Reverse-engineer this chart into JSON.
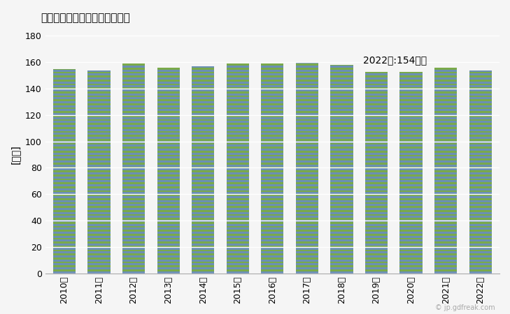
{
  "years": [
    "2010年",
    "2011年",
    "2012年",
    "2013年",
    "2014年",
    "2015年",
    "2016年",
    "2017年",
    "2018年",
    "2019年",
    "2020年",
    "2021年",
    "2022年"
  ],
  "values": [
    155,
    154,
    159,
    156,
    157,
    159,
    159,
    160,
    158,
    153,
    153,
    156,
    154
  ],
  "title": "男性常用労働者の総実労働時間",
  "ylabel": "[時間]",
  "annotation": "2022年:154時間",
  "ylim": [
    0,
    180
  ],
  "yticks": [
    0,
    20,
    40,
    60,
    80,
    100,
    120,
    140,
    160,
    180
  ],
  "bar_color_blue": "#6a8fb5",
  "bar_color_green": "#7aaa4a",
  "background_color": "#f5f5f5",
  "figsize": [
    7.29,
    4.5
  ],
  "dpi": 100,
  "watermark": "© jp.gdfreak.com"
}
